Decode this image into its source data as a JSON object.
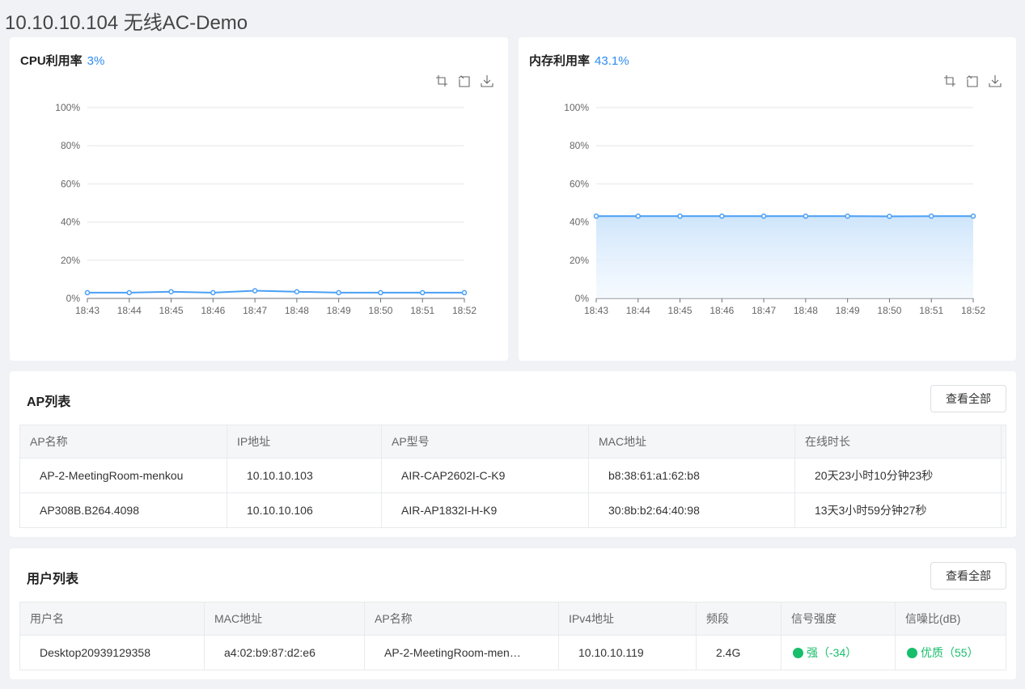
{
  "page_title": "10.10.10.104 无线AC-Demo",
  "cpu": {
    "label": "CPU利用率",
    "value": "3%",
    "chart_data": {
      "type": "line",
      "categories": [
        "18:43",
        "18:44",
        "18:45",
        "18:46",
        "18:47",
        "18:48",
        "18:49",
        "18:50",
        "18:51",
        "18:52"
      ],
      "values": [
        3,
        3,
        3.5,
        3,
        4,
        3.5,
        3,
        3,
        3,
        3
      ],
      "ylim": [
        0,
        100
      ],
      "yticks": [
        "0%",
        "20%",
        "40%",
        "60%",
        "80%",
        "100%"
      ],
      "area": false,
      "color": "#4a9ff5"
    }
  },
  "memory": {
    "label": "内存利用率",
    "value": "43.1%",
    "chart_data": {
      "type": "area",
      "categories": [
        "18:43",
        "18:44",
        "18:45",
        "18:46",
        "18:47",
        "18:48",
        "18:49",
        "18:50",
        "18:51",
        "18:52"
      ],
      "values": [
        43.1,
        43.1,
        43.1,
        43.1,
        43.1,
        43.1,
        43.1,
        43,
        43.1,
        43.1
      ],
      "ylim": [
        0,
        100
      ],
      "yticks": [
        "0%",
        "20%",
        "40%",
        "60%",
        "80%",
        "100%"
      ],
      "area": true,
      "color": "#4a9ff5"
    }
  },
  "toolbox_icons": [
    "zoom-icon",
    "restore-icon",
    "download-icon"
  ],
  "ap_list": {
    "title": "AP列表",
    "view_all": "查看全部",
    "columns": [
      "AP名称",
      "IP地址",
      "AP型号",
      "MAC地址",
      "在线时长"
    ],
    "rows": [
      [
        "AP-2-MeetingRoom-menkou",
        "10.10.10.103",
        "AIR-CAP2602I-C-K9",
        "b8:38:61:a1:62:b8",
        "20天23小时10分钟23秒"
      ],
      [
        "AP308B.B264.4098",
        "10.10.10.106",
        "AIR-AP1832I-H-K9",
        "30:8b:b2:64:40:98",
        "13天3小时59分钟27秒"
      ]
    ]
  },
  "user_list": {
    "title": "用户列表",
    "view_all": "查看全部",
    "columns": [
      "用户名",
      "MAC地址",
      "AP名称",
      "IPv4地址",
      "频段",
      "信号强度",
      "信噪比(dB)"
    ],
    "rows": [
      [
        "Desktop20939129358",
        "a4:02:b9:87:d2:e6",
        "AP-2-MeetingRoom-men…",
        "10.10.10.119",
        "2.4G",
        "强（-34）",
        "优质（55）"
      ]
    ],
    "status_color": "#19be6b"
  }
}
